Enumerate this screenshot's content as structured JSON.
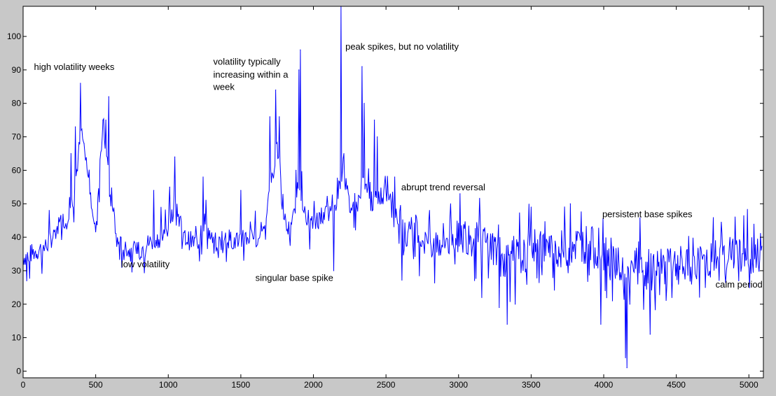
{
  "chart_data": {
    "type": "line",
    "title": "",
    "xlabel": "",
    "ylabel": "",
    "xlim": [
      0,
      5100
    ],
    "ylim": [
      -2,
      109
    ],
    "grid": false,
    "xticks": [
      0,
      500,
      1000,
      1500,
      2000,
      2500,
      3000,
      3500,
      4000,
      4500,
      5000
    ],
    "yticks": [
      0,
      10,
      20,
      30,
      40,
      50,
      60,
      70,
      80,
      90,
      100
    ],
    "colors": {
      "series": "#0000ff",
      "axes_bg": "#ffffff",
      "figure_bg": "#c8c8c8"
    },
    "series": [
      {
        "x": [
          0,
          50,
          100,
          150,
          200,
          250,
          300,
          350,
          400,
          450,
          500,
          550,
          600,
          650,
          700,
          750,
          800,
          850,
          900,
          950,
          1000,
          1050,
          1100,
          1150,
          1200,
          1250,
          1300,
          1350,
          1400,
          1450,
          1500,
          1550,
          1600,
          1650,
          1700,
          1750,
          1800,
          1850,
          1900,
          1950,
          2000,
          2050,
          2100,
          2150,
          2200,
          2250,
          2300,
          2350,
          2400,
          2450,
          2500,
          2550,
          2600,
          2650,
          2700,
          2750,
          2800,
          2850,
          2900,
          2950,
          3000,
          3050,
          3100,
          3150,
          3200,
          3250,
          3300,
          3350,
          3400,
          3450,
          3500,
          3550,
          3600,
          3650,
          3700,
          3750,
          3800,
          3850,
          3900,
          3950,
          4000,
          4050,
          4100,
          4150,
          4200,
          4250,
          4300,
          4350,
          4400,
          4450,
          4500,
          4550,
          4600,
          4650,
          4700,
          4750,
          4800,
          4850,
          4900,
          4950,
          5000,
          5050,
          5100
        ],
        "y": [
          34,
          35,
          36,
          37,
          40,
          44,
          46,
          52,
          72,
          58,
          42,
          75,
          52,
          38,
          37,
          35,
          36,
          38,
          39,
          40,
          43,
          52,
          40,
          39,
          38,
          45,
          39,
          38,
          40,
          39,
          40,
          40,
          40,
          42,
          52,
          68,
          43,
          42,
          58,
          44,
          44,
          46,
          47,
          47,
          62,
          49,
          49,
          58,
          50,
          52,
          54,
          51,
          38,
          40,
          41,
          40,
          39,
          39,
          39,
          40,
          43,
          41,
          40,
          38,
          38,
          37,
          33,
          35,
          34,
          34,
          36,
          37,
          37,
          35,
          36,
          37,
          38,
          38,
          38,
          36,
          36,
          34,
          33,
          25,
          31,
          30,
          29,
          30,
          31,
          32,
          32,
          31,
          31,
          32,
          33,
          33,
          34,
          35,
          36,
          35,
          35,
          34,
          35
        ],
        "spikes": [
          {
            "x": 25,
            "y": 27
          },
          {
            "x": 180,
            "y": 48
          },
          {
            "x": 330,
            "y": 65
          },
          {
            "x": 360,
            "y": 73
          },
          {
            "x": 395,
            "y": 86
          },
          {
            "x": 420,
            "y": 68
          },
          {
            "x": 550,
            "y": 75
          },
          {
            "x": 570,
            "y": 75
          },
          {
            "x": 590,
            "y": 82
          },
          {
            "x": 680,
            "y": 31
          },
          {
            "x": 900,
            "y": 54
          },
          {
            "x": 1010,
            "y": 55
          },
          {
            "x": 1045,
            "y": 64
          },
          {
            "x": 1240,
            "y": 58
          },
          {
            "x": 1500,
            "y": 54
          },
          {
            "x": 1700,
            "y": 76
          },
          {
            "x": 1740,
            "y": 84
          },
          {
            "x": 1765,
            "y": 76
          },
          {
            "x": 1910,
            "y": 96
          },
          {
            "x": 1900,
            "y": 90
          },
          {
            "x": 1880,
            "y": 60
          },
          {
            "x": 2140,
            "y": 30
          },
          {
            "x": 2190,
            "y": 109
          },
          {
            "x": 2210,
            "y": 65
          },
          {
            "x": 2335,
            "y": 91
          },
          {
            "x": 2350,
            "y": 80
          },
          {
            "x": 2420,
            "y": 75
          },
          {
            "x": 2440,
            "y": 70
          },
          {
            "x": 2560,
            "y": 58
          },
          {
            "x": 3010,
            "y": 53
          },
          {
            "x": 3160,
            "y": 22
          },
          {
            "x": 3280,
            "y": 19
          },
          {
            "x": 3335,
            "y": 14
          },
          {
            "x": 3390,
            "y": 20
          },
          {
            "x": 3500,
            "y": 49
          },
          {
            "x": 3770,
            "y": 50
          },
          {
            "x": 3980,
            "y": 14
          },
          {
            "x": 4060,
            "y": 21
          },
          {
            "x": 4150,
            "y": 4
          },
          {
            "x": 4160,
            "y": 1
          },
          {
            "x": 4180,
            "y": 20
          },
          {
            "x": 4320,
            "y": 11
          },
          {
            "x": 4470,
            "y": 22
          },
          {
            "x": 4700,
            "y": 25
          },
          {
            "x": 4930,
            "y": 27
          },
          {
            "x": 5050,
            "y": 31
          }
        ]
      }
    ],
    "annotations": [
      {
        "text": "high volatility weeks",
        "x": 75,
        "y": 90
      },
      {
        "text": "low volatility",
        "x": 675,
        "y": 31
      },
      {
        "text": "volatility typically",
        "x": 1310,
        "y": 91.5
      },
      {
        "text": "increasing within a",
        "x": 1310,
        "y": 87.7
      },
      {
        "text": "week",
        "x": 1310,
        "y": 84
      },
      {
        "text": "singular base spike",
        "x": 1600,
        "y": 27
      },
      {
        "text": "peak spikes, but no volatility",
        "x": 2220,
        "y": 96
      },
      {
        "text": "abrupt trend reversal",
        "x": 2605,
        "y": 54
      },
      {
        "text": "persistent base spikes",
        "x": 3990,
        "y": 46
      },
      {
        "text": "calm period",
        "x": 4770,
        "y": 25
      }
    ]
  }
}
